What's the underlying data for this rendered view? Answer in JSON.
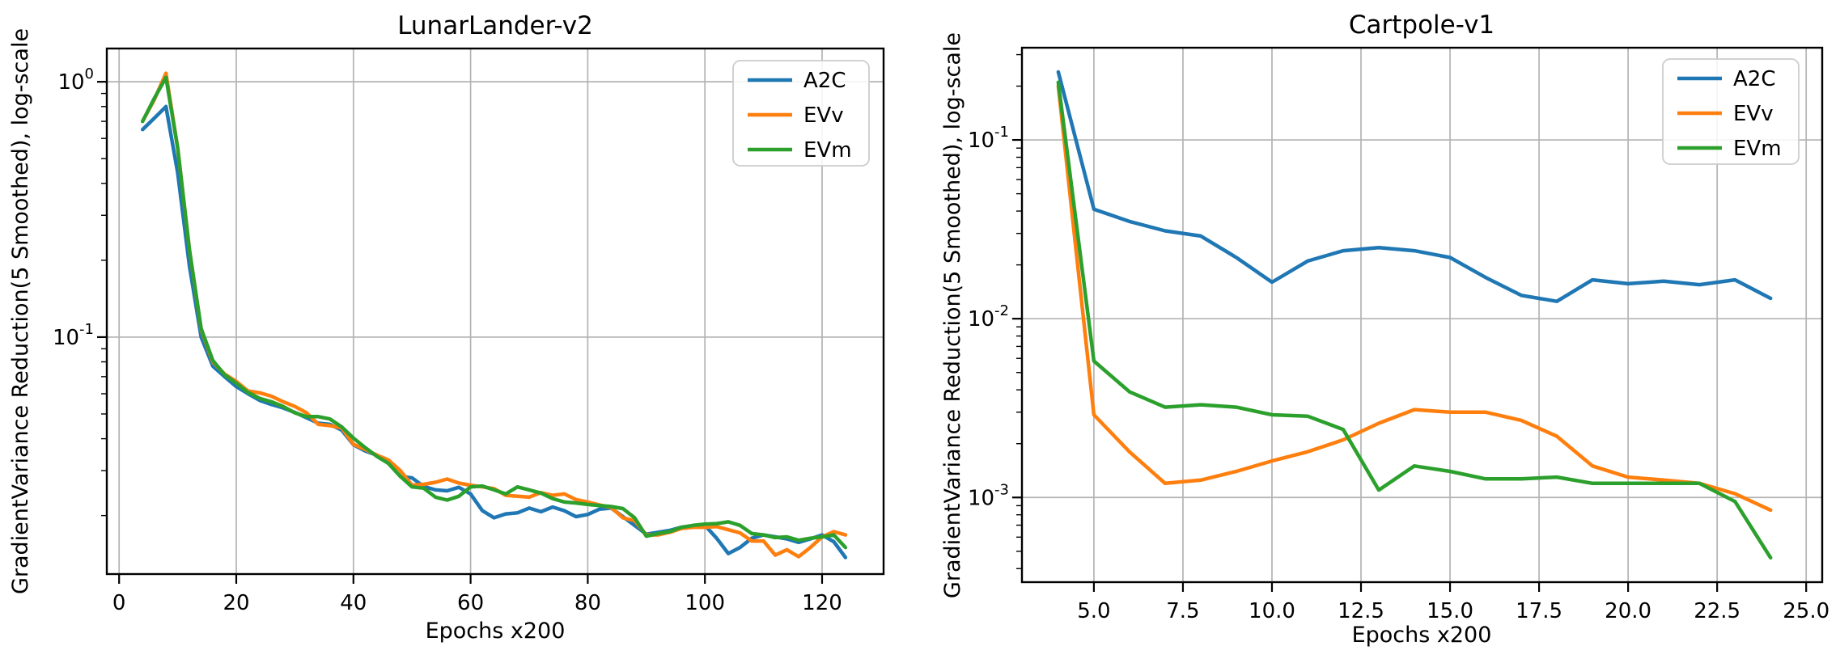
{
  "figure": {
    "background": "#ffffff",
    "grid_color": "#b3b3b3",
    "spine_color": "#000000",
    "legend_border": "#cccccc"
  },
  "chart_data": [
    {
      "type": "line",
      "title": "LunarLander-v2",
      "xlabel": "Epochs x200",
      "ylabel": "GradientVariance Reduction(5 Smoothed), log-scale",
      "yscale": "log",
      "grid": true,
      "legend_position": "upper right",
      "xlim": [
        -2.1,
        130.5
      ],
      "ylim": [
        0.0118,
        1.35
      ],
      "xticks": [
        0,
        20,
        40,
        60,
        80,
        100,
        120
      ],
      "xtick_labels": [
        "0",
        "20",
        "40",
        "60",
        "80",
        "100",
        "120"
      ],
      "ytick_exps": [
        0,
        -1
      ],
      "x": [
        4,
        6,
        8,
        10,
        12,
        14,
        16,
        18,
        20,
        22,
        24,
        26,
        28,
        30,
        32,
        34,
        36,
        38,
        40,
        42,
        44,
        46,
        48,
        50,
        52,
        54,
        56,
        58,
        60,
        62,
        64,
        66,
        68,
        70,
        72,
        74,
        76,
        78,
        80,
        82,
        84,
        86,
        88,
        90,
        92,
        94,
        96,
        98,
        100,
        102,
        104,
        106,
        108,
        110,
        112,
        114,
        116,
        118,
        120,
        122,
        124
      ],
      "series": [
        {
          "name": "A2C",
          "color": "#1f77b4",
          "values": [
            0.65,
            0.72,
            0.8,
            0.44,
            0.19,
            0.1,
            0.077,
            0.07,
            0.064,
            0.06,
            0.0565,
            0.0545,
            0.0528,
            0.0507,
            0.0483,
            0.046,
            0.0455,
            0.0432,
            0.0379,
            0.0358,
            0.0345,
            0.032,
            0.0285,
            0.0281,
            0.026,
            0.0252,
            0.025,
            0.0258,
            0.0243,
            0.0209,
            0.0196,
            0.0203,
            0.0205,
            0.0214,
            0.0207,
            0.0216,
            0.0209,
            0.0198,
            0.0202,
            0.0212,
            0.0214,
            0.0198,
            0.0183,
            0.0169,
            0.0172,
            0.0175,
            0.018,
            0.0182,
            0.0183,
            0.0163,
            0.0142,
            0.015,
            0.0163,
            0.0168,
            0.0165,
            0.0162,
            0.0157,
            0.0162,
            0.0168,
            0.0158,
            0.0137
          ]
        },
        {
          "name": "EVv",
          "color": "#ff7f0e",
          "values": [
            0.7,
            0.85,
            1.08,
            0.55,
            0.22,
            0.107,
            0.08,
            0.0717,
            0.067,
            0.0615,
            0.0605,
            0.0587,
            0.0558,
            0.0535,
            0.0505,
            0.0455,
            0.045,
            0.0441,
            0.038,
            0.0363,
            0.0345,
            0.033,
            0.03,
            0.0263,
            0.0265,
            0.027,
            0.0278,
            0.0268,
            0.0263,
            0.0259,
            0.0255,
            0.024,
            0.0238,
            0.0236,
            0.0246,
            0.024,
            0.0243,
            0.0231,
            0.0226,
            0.022,
            0.0215,
            0.0196,
            0.0191,
            0.0168,
            0.0168,
            0.0172,
            0.0178,
            0.018,
            0.018,
            0.0181,
            0.0176,
            0.0171,
            0.0159,
            0.0159,
            0.014,
            0.0147,
            0.0138,
            0.015,
            0.0165,
            0.0173,
            0.0168
          ]
        },
        {
          "name": "EVm",
          "color": "#2ca02c",
          "values": [
            0.7,
            0.86,
            1.04,
            0.55,
            0.22,
            0.108,
            0.081,
            0.0712,
            0.066,
            0.0607,
            0.0575,
            0.0558,
            0.0535,
            0.0505,
            0.0488,
            0.0488,
            0.0478,
            0.0445,
            0.0402,
            0.0369,
            0.0341,
            0.032,
            0.0285,
            0.0259,
            0.0256,
            0.0236,
            0.023,
            0.0238,
            0.0259,
            0.0261,
            0.0252,
            0.0243,
            0.0259,
            0.0252,
            0.0245,
            0.0233,
            0.0226,
            0.0224,
            0.0221,
            0.0219,
            0.0217,
            0.0213,
            0.0196,
            0.0166,
            0.017,
            0.0173,
            0.018,
            0.0183,
            0.0185,
            0.0186,
            0.0189,
            0.0183,
            0.017,
            0.0168,
            0.0164,
            0.0165,
            0.016,
            0.0163,
            0.0165,
            0.0168,
            0.015
          ]
        }
      ]
    },
    {
      "type": "line",
      "title": "Cartpole-v1",
      "xlabel": "Epochs x200",
      "ylabel": "GradientVariance Reduction(5 Smoothed), log-scale",
      "yscale": "log",
      "grid": true,
      "legend_position": "upper right",
      "xlim": [
        2.98,
        25.45
      ],
      "ylim": [
        0.000336,
        0.328
      ],
      "xticks": [
        5,
        7.5,
        10,
        12.5,
        15,
        17.5,
        20,
        22.5,
        25
      ],
      "xtick_labels": [
        "5.0",
        "7.5",
        "10.0",
        "12.5",
        "15.0",
        "17.5",
        "20.0",
        "22.5",
        "25.0"
      ],
      "ytick_exps": [
        -1,
        -2,
        -3
      ],
      "x": [
        4,
        5,
        6,
        7,
        8,
        9,
        10,
        11,
        12,
        13,
        14,
        15,
        16,
        17,
        18,
        19,
        20,
        21,
        22,
        23,
        24
      ],
      "series": [
        {
          "name": "A2C",
          "color": "#1f77b4",
          "values": [
            0.24,
            0.041,
            0.035,
            0.031,
            0.029,
            0.022,
            0.016,
            0.021,
            0.024,
            0.025,
            0.024,
            0.022,
            0.017,
            0.0135,
            0.0125,
            0.0165,
            0.0157,
            0.0162,
            0.0155,
            0.0165,
            0.013
          ]
        },
        {
          "name": "EVv",
          "color": "#ff7f0e",
          "values": [
            0.2,
            0.0029,
            0.0018,
            0.0012,
            0.00125,
            0.0014,
            0.0016,
            0.0018,
            0.0021,
            0.0026,
            0.0031,
            0.003,
            0.003,
            0.0027,
            0.0022,
            0.0015,
            0.0013,
            0.00125,
            0.0012,
            0.00105,
            0.00085
          ]
        },
        {
          "name": "EVm",
          "color": "#2ca02c",
          "values": [
            0.21,
            0.0058,
            0.0039,
            0.0032,
            0.0033,
            0.0032,
            0.0029,
            0.00285,
            0.0024,
            0.0011,
            0.0015,
            0.0014,
            0.00127,
            0.00127,
            0.0013,
            0.0012,
            0.0012,
            0.0012,
            0.0012,
            0.00095,
            0.00046
          ]
        }
      ]
    }
  ]
}
